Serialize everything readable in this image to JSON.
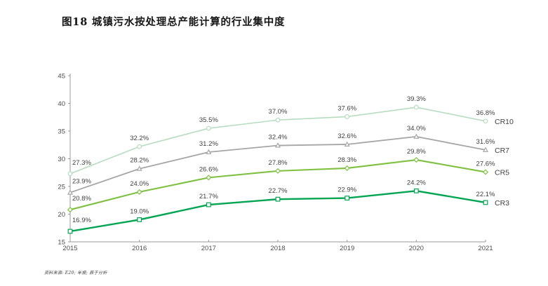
{
  "header": {
    "title": "图18 城镇污水按处理总产能计算的行业集中度"
  },
  "footnote": {
    "text": "资料来源: E20; 年报; 辰于分析"
  },
  "chart_data": {
    "type": "line",
    "title": "图18 城镇污水按处理总产能计算的行业集中度",
    "categories": [
      "2015",
      "2016",
      "2017",
      "2018",
      "2019",
      "2020",
      "2021"
    ],
    "series": [
      {
        "name": "CR10",
        "color": "#b7ddc0",
        "marker": "circle",
        "line_width": 1.6,
        "values": [
          27.3,
          32.2,
          35.5,
          37.0,
          37.6,
          39.3,
          36.8
        ]
      },
      {
        "name": "CR7",
        "color": "#a6a6a6",
        "marker": "triangle",
        "line_width": 1.8,
        "values": [
          23.9,
          28.2,
          31.2,
          32.4,
          32.6,
          34.0,
          31.6
        ]
      },
      {
        "name": "CR5",
        "color": "#7ec141",
        "marker": "diamond",
        "line_width": 2.1,
        "values": [
          20.8,
          24.0,
          26.6,
          27.8,
          28.3,
          29.8,
          27.6
        ]
      },
      {
        "name": "CR3",
        "color": "#00a551",
        "marker": "square",
        "line_width": 2.4,
        "values": [
          16.9,
          19.0,
          21.7,
          22.7,
          22.9,
          24.2,
          22.1
        ]
      }
    ],
    "ylim": [
      15,
      45
    ],
    "ytick_step": 5,
    "grid": false,
    "legend_position": "line-end",
    "label_format": "one_decimal_percent",
    "axis_color": "#9a9a9a",
    "xlabel": "",
    "ylabel": ""
  }
}
